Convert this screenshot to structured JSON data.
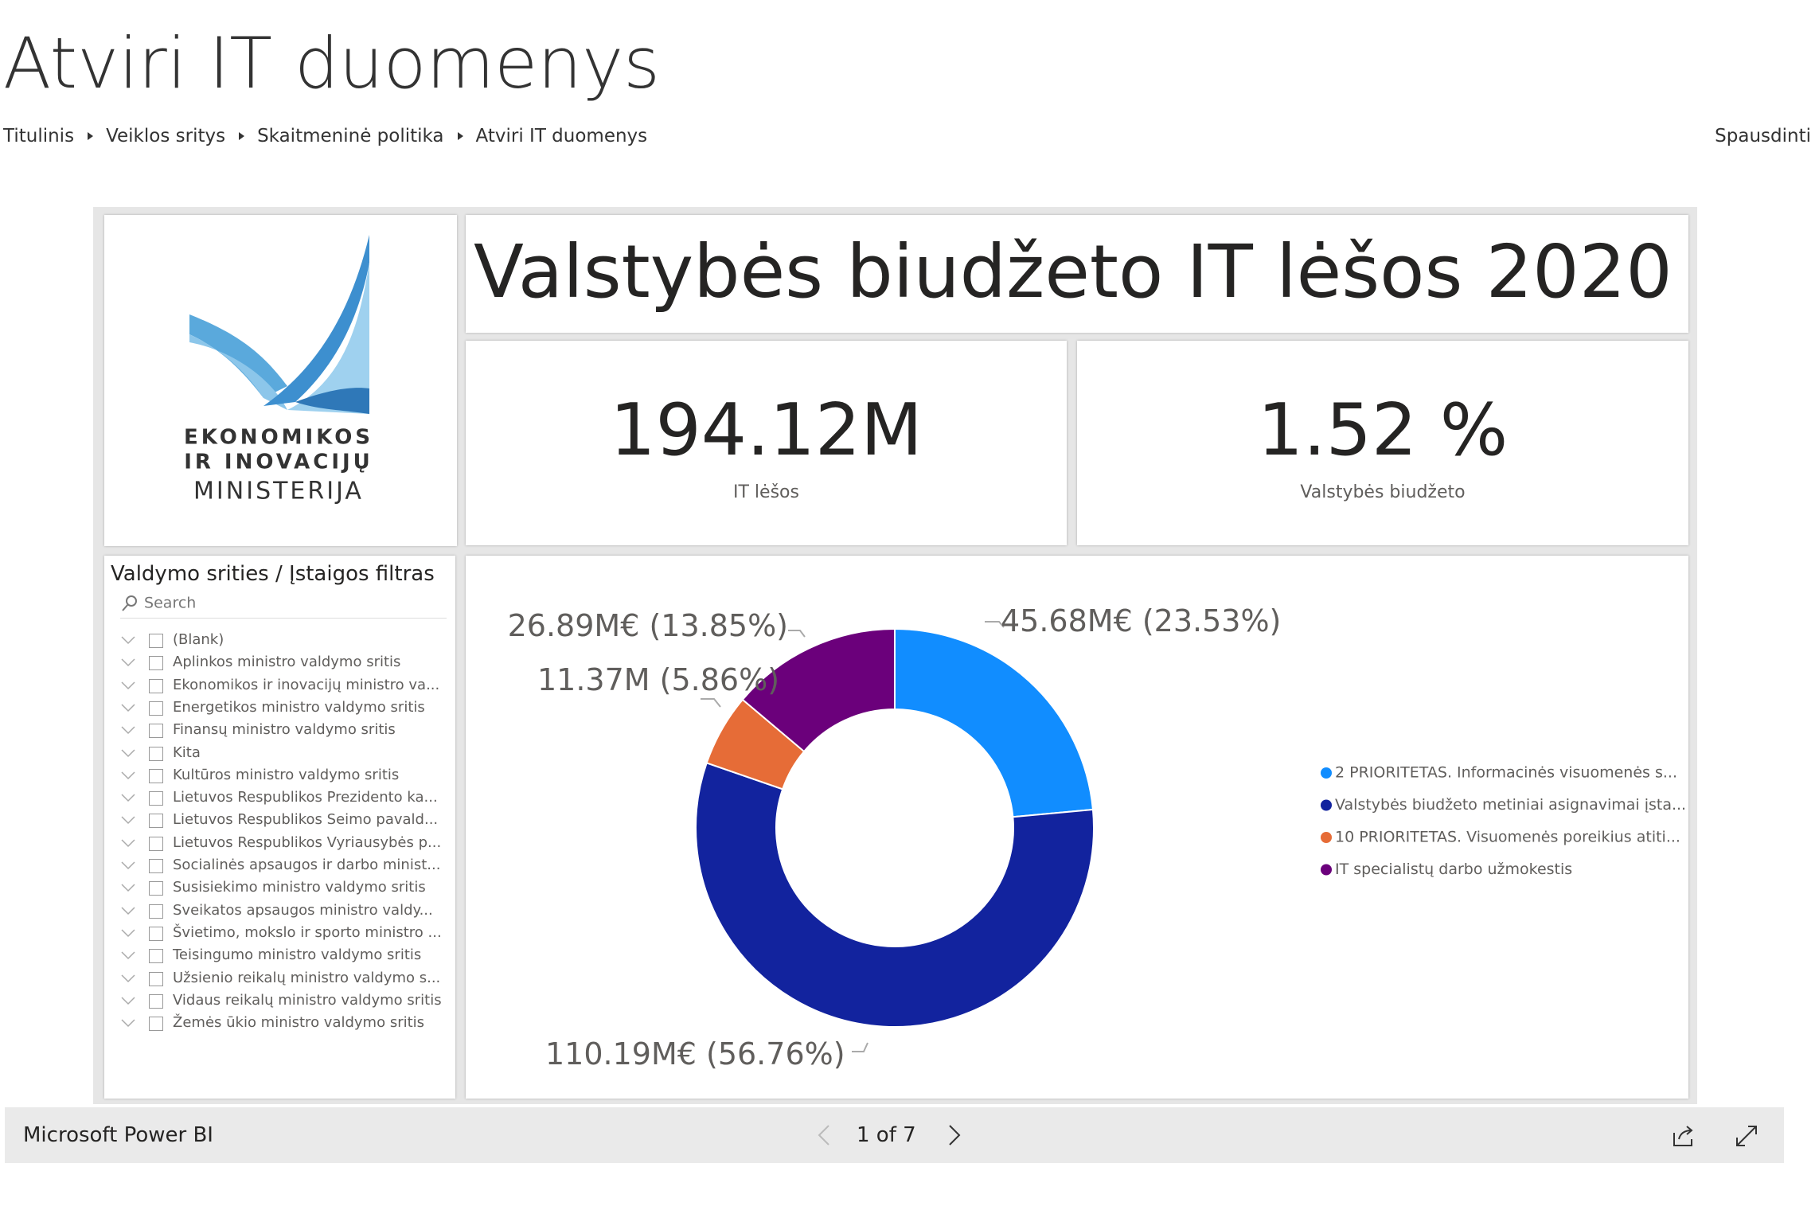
{
  "header": {
    "title": "Atviri IT duomenys",
    "breadcrumbs": [
      "Titulinis",
      "Veiklos sritys",
      "Skaitmeninė politika",
      "Atviri IT duomenys"
    ],
    "print": "Spausdinti"
  },
  "logo": {
    "lines": [
      "EKONOMIKOS",
      "IR INOVACIJŲ",
      "MINISTERIJA"
    ]
  },
  "report": {
    "title": "Valstybės biudžeto IT lėšos 2020",
    "kpis": [
      {
        "value": "194.12M",
        "label": "IT lėšos"
      },
      {
        "value": "1.52 %",
        "label": "Valstybės biudžeto"
      }
    ],
    "filter": {
      "title": "Valdymo srities / Įstaigos filtras",
      "search": "Search",
      "items": [
        "(Blank)",
        "Aplinkos ministro valdymo sritis",
        "Ekonomikos ir inovacijų ministro va...",
        "Energetikos ministro valdymo sritis",
        "Finansų ministro valdymo sritis",
        "Kita",
        "Kultūros ministro valdymo sritis",
        "Lietuvos Respublikos Prezidento ka...",
        "Lietuvos Respublikos Seimo pavald...",
        "Lietuvos Respublikos Vyriausybės p...",
        "Socialinės apsaugos ir darbo minist...",
        "Susisiekimo ministro valdymo sritis",
        "Sveikatos apsaugos ministro valdy...",
        "Švietimo, mokslo ir sporto ministro ...",
        "Teisingumo ministro valdymo sritis",
        "Užsienio reikalų ministro valdymo s...",
        "Vidaus reikalų ministro valdymo sritis",
        "Žemės ūkio ministro valdymo sritis"
      ]
    }
  },
  "chart_data": {
    "type": "donut",
    "categories": [
      "2 PRIORITETAS. Informacinės visuomenės s...",
      "Valstybės biudžeto metiniai asignavimai įsta...",
      "10 PRIORITETAS. Visuomenės poreikius atiti...",
      "IT specialistų darbo užmokestis"
    ],
    "values": [
      45.68,
      110.19,
      11.37,
      26.89
    ],
    "value_labels": [
      "45.68M€ (23.53%)",
      "110.19M€ (56.76%)",
      "11.37M (5.86%)",
      "26.89M€ (13.85%)"
    ],
    "colors": [
      "#118dff",
      "#12239e",
      "#e66c37",
      "#6b007b"
    ],
    "legend": "right"
  },
  "footer": {
    "brand": "Microsoft Power BI",
    "page": "1 of 7"
  }
}
